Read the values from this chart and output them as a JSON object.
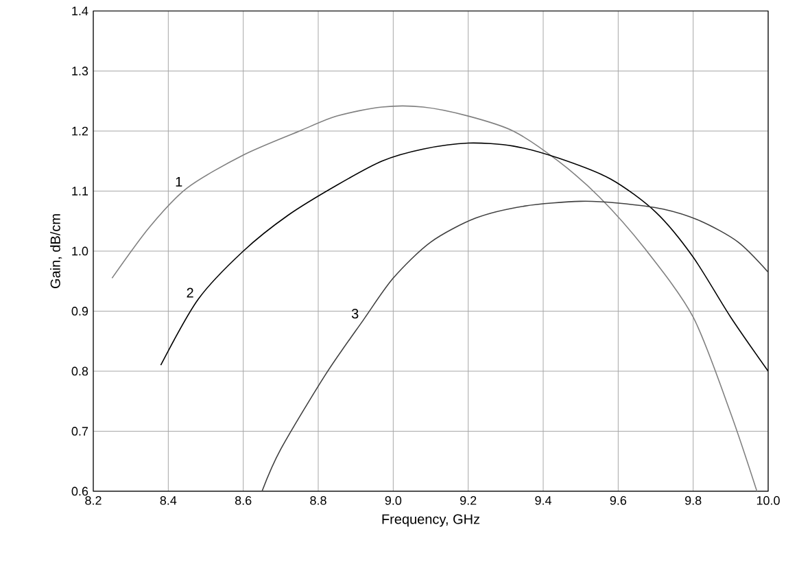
{
  "chart_data": {
    "type": "line",
    "xlabel": "Frequency, GHz",
    "ylabel": "Gain, dB/cm",
    "xlim": [
      8.2,
      10.0
    ],
    "xticks": [
      {
        "value": 8.2,
        "label": "8.2"
      },
      {
        "value": 8.4,
        "label": "8.4"
      },
      {
        "value": 8.6,
        "label": "8.6"
      },
      {
        "value": 8.8,
        "label": "8.8"
      },
      {
        "value": 9.0,
        "label": "9.0"
      },
      {
        "value": 9.2,
        "label": "9.2"
      },
      {
        "value": 9.4,
        "label": "9.4"
      },
      {
        "value": 9.6,
        "label": "9.6"
      },
      {
        "value": 9.8,
        "label": "9.8"
      },
      {
        "value": 10.0,
        "label": "10.0"
      }
    ],
    "ylim": [
      0.6,
      1.4
    ],
    "yticks": [
      {
        "value": 0.6,
        "label": "0.6"
      },
      {
        "value": 0.7,
        "label": "0.7"
      },
      {
        "value": 0.8,
        "label": "0.8"
      },
      {
        "value": 0.9,
        "label": "0.9"
      },
      {
        "value": 1.0,
        "label": "1.0"
      },
      {
        "value": 1.1,
        "label": "1.1"
      },
      {
        "value": 1.2,
        "label": "1.2"
      },
      {
        "value": 1.3,
        "label": "1.3"
      },
      {
        "value": 1.4,
        "label": "1.4"
      }
    ],
    "grid": true,
    "marker": "none",
    "line_style": "solid",
    "series": [
      {
        "name": "1",
        "color": "#808080",
        "x": [
          8.25,
          8.35,
          8.45,
          8.6,
          8.75,
          8.85,
          8.97,
          9.08,
          9.2,
          9.32,
          9.44,
          9.55,
          9.67,
          9.8,
          9.9,
          9.97
        ],
        "values": [
          0.955,
          1.04,
          1.105,
          1.16,
          1.2,
          1.225,
          1.24,
          1.24,
          1.225,
          1.2,
          1.15,
          1.09,
          1.005,
          0.89,
          0.73,
          0.6
        ]
      },
      {
        "name": "2",
        "color": "#000000",
        "x": [
          8.38,
          8.48,
          8.6,
          8.72,
          8.85,
          8.97,
          9.08,
          9.2,
          9.32,
          9.44,
          9.58,
          9.7,
          9.8,
          9.9,
          10.0
        ],
        "values": [
          0.81,
          0.92,
          1.0,
          1.06,
          1.11,
          1.15,
          1.17,
          1.18,
          1.175,
          1.155,
          1.12,
          1.065,
          0.99,
          0.89,
          0.8
        ]
      },
      {
        "name": "3",
        "color": "#404040",
        "x": [
          8.65,
          8.7,
          8.82,
          8.92,
          9.0,
          9.1,
          9.22,
          9.35,
          9.5,
          9.6,
          9.72,
          9.82,
          9.92,
          10.0
        ],
        "values": [
          0.6,
          0.67,
          0.795,
          0.885,
          0.955,
          1.015,
          1.055,
          1.075,
          1.083,
          1.08,
          1.07,
          1.05,
          1.015,
          0.965
        ]
      }
    ]
  }
}
